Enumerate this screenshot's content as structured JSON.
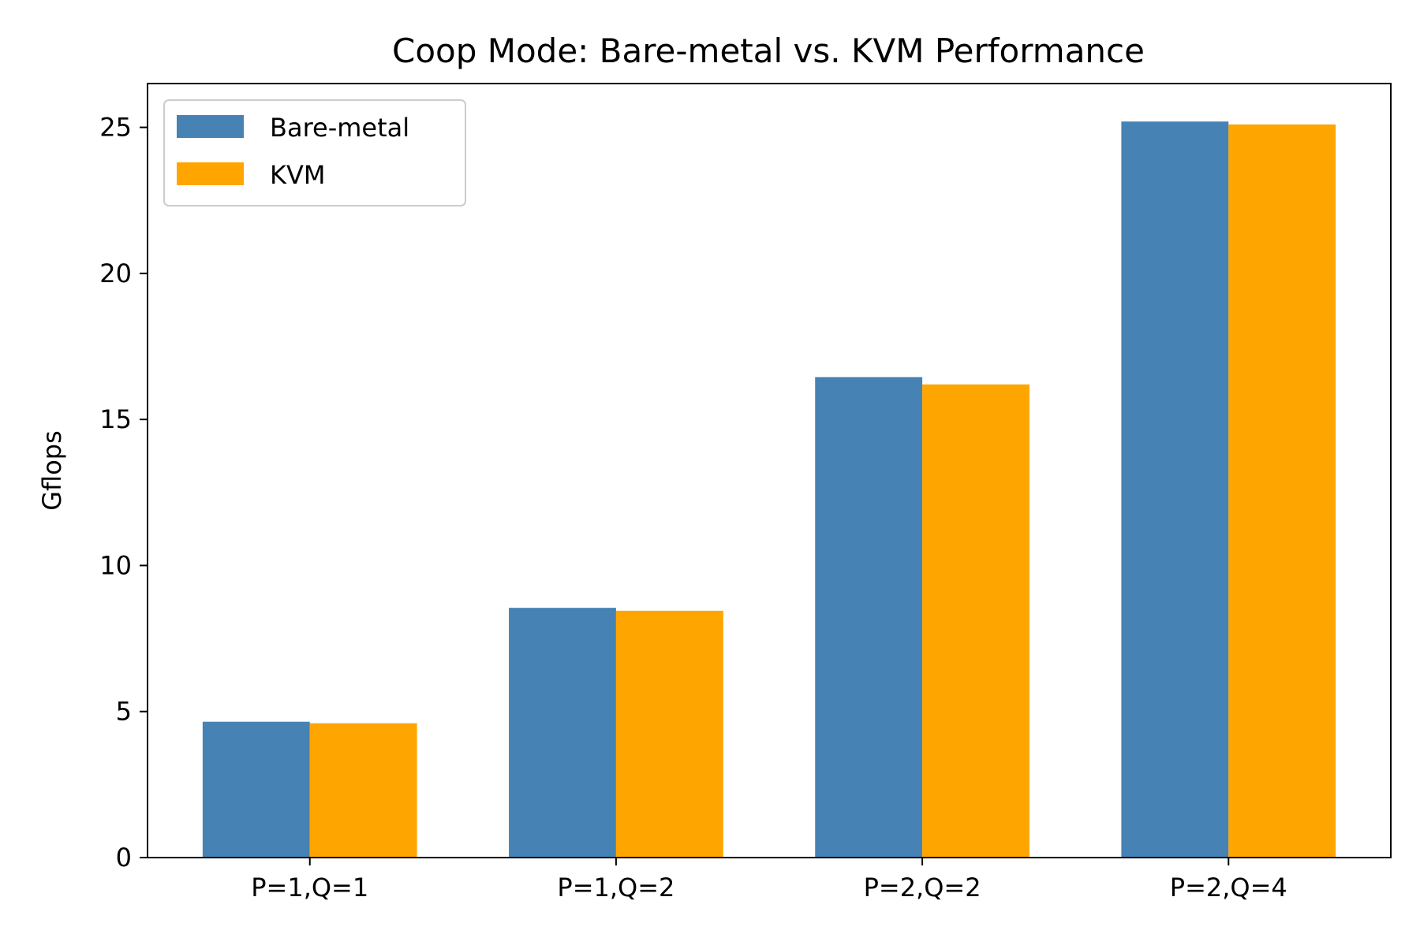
{
  "chart_data": {
    "type": "bar",
    "title": "Coop Mode: Bare-metal vs. KVM Performance",
    "xlabel": "",
    "ylabel": "Gflops",
    "categories": [
      "P=1,Q=1",
      "P=1,Q=2",
      "P=2,Q=2",
      "P=2,Q=4"
    ],
    "series": [
      {
        "name": "Bare-metal",
        "values": [
          4.65,
          8.55,
          16.45,
          25.2
        ],
        "color": "#4682b4"
      },
      {
        "name": "KVM",
        "values": [
          4.6,
          8.45,
          16.2,
          25.1
        ],
        "color": "#ffa500"
      }
    ],
    "ylim": [
      0,
      26.5
    ],
    "yticks": [
      0,
      5,
      10,
      15,
      20,
      25
    ],
    "grid": false,
    "legend_position": "top-left"
  }
}
